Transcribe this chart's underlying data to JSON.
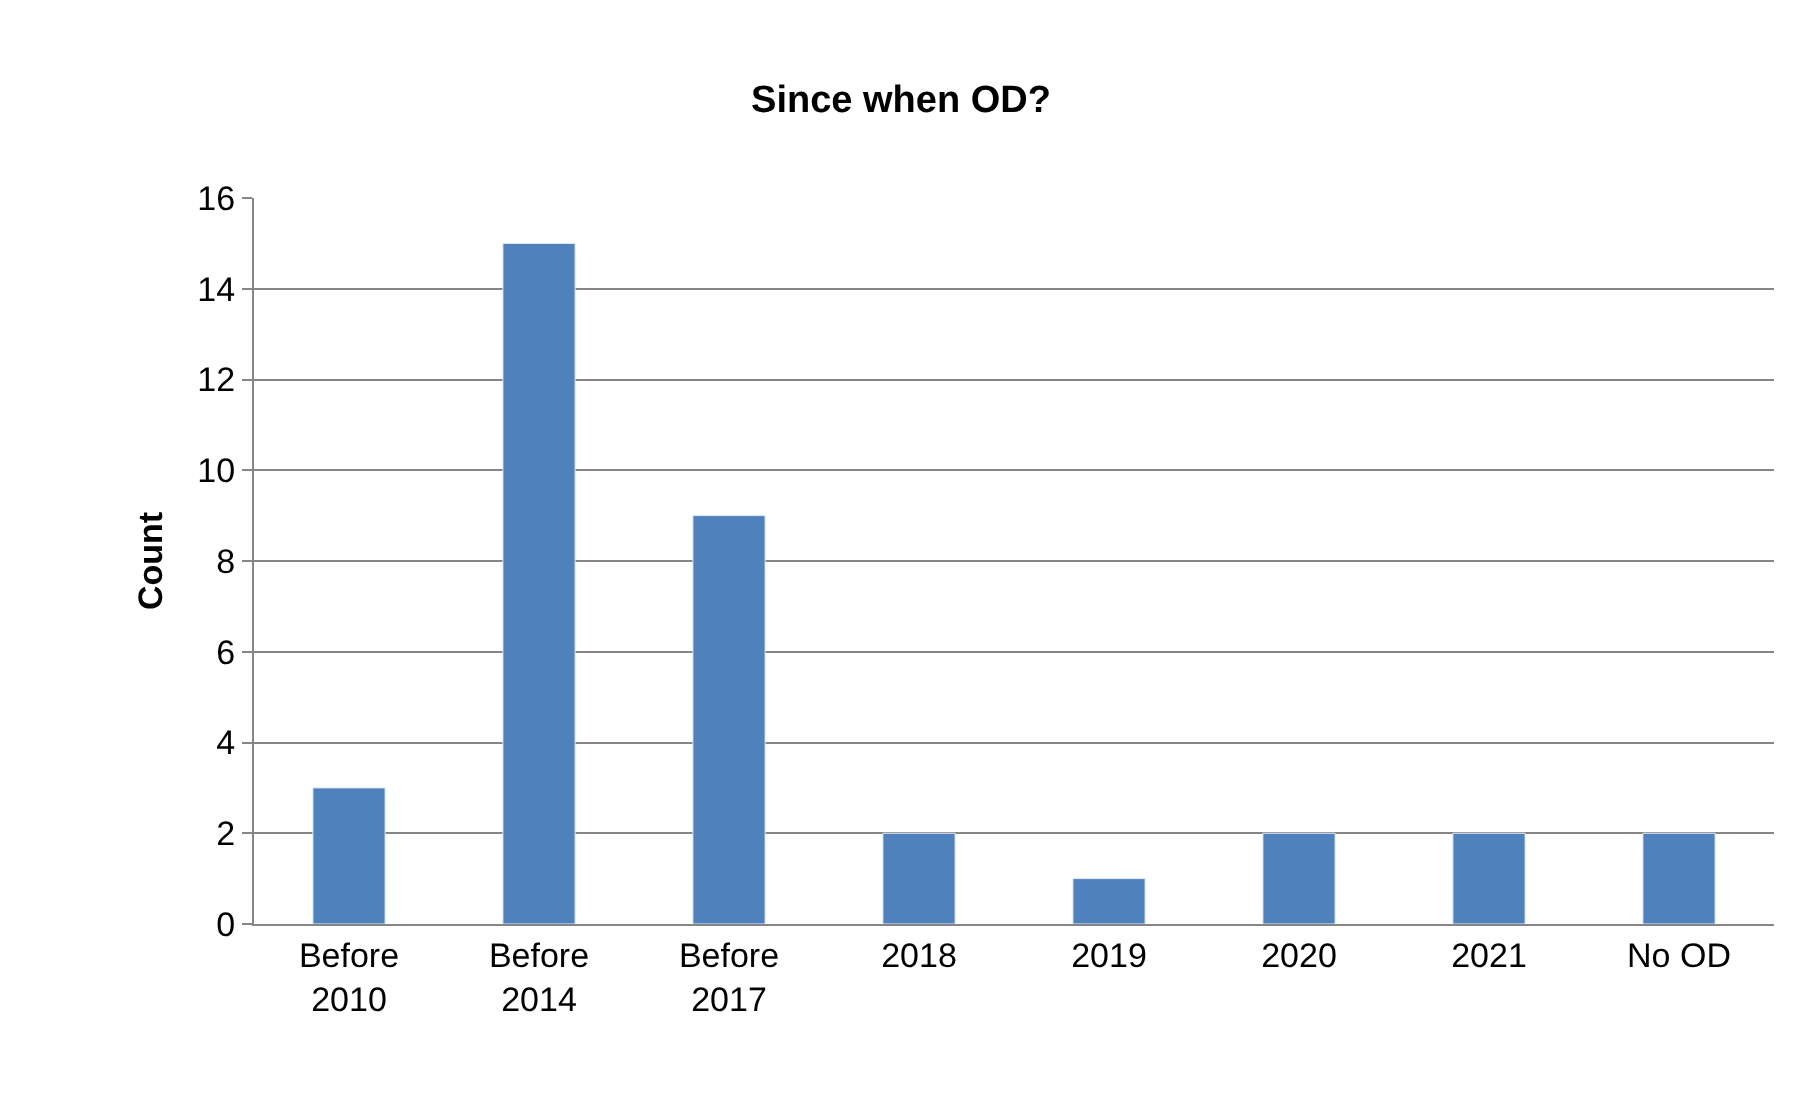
{
  "chart_data": {
    "type": "bar",
    "title": "Since when OD?",
    "ylabel": "Count",
    "categories": [
      "Before 2010",
      "Before 2014",
      "Before 2017",
      "2018",
      "2019",
      "2020",
      "2021",
      "No OD"
    ],
    "values": [
      3,
      15,
      9,
      2,
      1,
      2,
      2,
      2
    ],
    "color": "#4f81bd",
    "ylim": [
      0,
      16
    ],
    "yticks": [
      0,
      2,
      4,
      6,
      8,
      10,
      12,
      14,
      16
    ],
    "grid": "y"
  }
}
